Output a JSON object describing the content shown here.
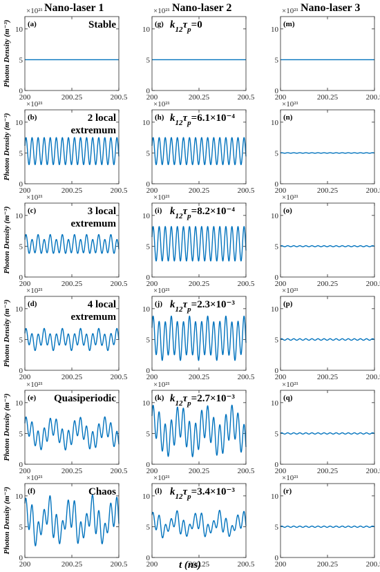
{
  "figure": {
    "column_titles": [
      "Nano-laser 1",
      "Nano-laser 2",
      "Nano-laser 3"
    ],
    "ylabel": "Photon Density (m⁻³)",
    "xlabel": "t (ns)",
    "y_exponent": "×10²¹"
  },
  "chart_data": [
    {
      "id": "a",
      "type": "line",
      "panel_label": "(a)",
      "annotation": [
        "Stable"
      ],
      "xlim": [
        200,
        200.5
      ],
      "ylim": [
        0,
        12
      ],
      "xticks": [
        200,
        200.25,
        200.5
      ],
      "xtick_labels": [
        "200",
        "200.25",
        "200.5"
      ],
      "yticks": [
        0,
        5,
        10
      ],
      "exponent": "×10²¹",
      "series": [
        {
          "mean": 5,
          "amplitude": 0,
          "cycles": 0
        }
      ]
    },
    {
      "id": "g",
      "type": "line",
      "panel_label": "(g)",
      "annotation": [
        "k12τp=0"
      ],
      "xlim": [
        200,
        200.5
      ],
      "ylim": [
        0,
        12
      ],
      "xticks": [
        200,
        200.25,
        200.5
      ],
      "xtick_labels": [
        "200",
        "200.25",
        "200.5"
      ],
      "yticks": [
        0,
        5,
        10
      ],
      "exponent": "×10²¹",
      "series": [
        {
          "mean": 5,
          "amplitude": 0,
          "cycles": 0
        }
      ]
    },
    {
      "id": "m",
      "type": "line",
      "panel_label": "(m)",
      "annotation": [],
      "xlim": [
        200,
        200.5
      ],
      "ylim": [
        0,
        12
      ],
      "xticks": [
        200,
        200.25,
        200.5
      ],
      "xtick_labels": [
        "200",
        "200.25",
        "200.5"
      ],
      "yticks": [
        0,
        5,
        10
      ],
      "exponent": "×10²¹",
      "series": [
        {
          "mean": 5,
          "amplitude": 0,
          "cycles": 0
        }
      ]
    },
    {
      "id": "b",
      "type": "line",
      "panel_label": "(b)",
      "annotation": [
        "2 local",
        "extremum"
      ],
      "xlim": [
        200,
        200.5
      ],
      "ylim": [
        0,
        12
      ],
      "xticks": [
        200,
        200.25,
        200.5
      ],
      "xtick_labels": [
        "200",
        "200.25",
        "200.5"
      ],
      "yticks": [
        0,
        5,
        10
      ],
      "exponent": "×10²¹",
      "series": [
        {
          "mean": 5.3,
          "amplitude": 2.2,
          "cycles": 15.5
        }
      ]
    },
    {
      "id": "h",
      "type": "line",
      "panel_label": "(h)",
      "annotation": [
        "k12τp=6.1×10⁻⁴"
      ],
      "xlim": [
        200,
        200.5
      ],
      "ylim": [
        0,
        12
      ],
      "xticks": [
        200,
        200.25,
        200.5
      ],
      "xtick_labels": [
        "200",
        "200.25",
        "200.5"
      ],
      "yticks": [
        0,
        5,
        10
      ],
      "exponent": "×10²¹",
      "series": [
        {
          "mean": 5.3,
          "amplitude": 2.2,
          "cycles": 15.5
        }
      ]
    },
    {
      "id": "n",
      "type": "line",
      "panel_label": "(n)",
      "annotation": [],
      "xlim": [
        200,
        200.5
      ],
      "ylim": [
        0,
        12
      ],
      "xticks": [
        200,
        200.25,
        200.5
      ],
      "xtick_labels": [
        "200",
        "200.25",
        "200.5"
      ],
      "yticks": [
        0,
        5,
        10
      ],
      "exponent": "×10²¹",
      "series": [
        {
          "mean": 5,
          "amplitude": 0.04,
          "cycles": 15.5
        }
      ]
    },
    {
      "id": "c",
      "type": "line",
      "panel_label": "(c)",
      "annotation": [
        "3 local",
        "extremum"
      ],
      "xlim": [
        200,
        200.5
      ],
      "ylim": [
        0,
        12
      ],
      "xticks": [
        200,
        200.25,
        200.5
      ],
      "xtick_labels": [
        "200",
        "200.25",
        "200.5"
      ],
      "yticks": [
        0,
        5,
        10
      ],
      "exponent": "×10²¹",
      "series": [
        {
          "mean": 5.2,
          "amplitude": 1.3,
          "cycles": 15.5,
          "second_amplitude": 0.4,
          "second_cycles": 7.75
        }
      ]
    },
    {
      "id": "i",
      "type": "line",
      "panel_label": "(i)",
      "annotation": [
        "k12τp=8.2×10⁻⁴"
      ],
      "xlim": [
        200,
        200.5
      ],
      "ylim": [
        0,
        12
      ],
      "xticks": [
        200,
        200.25,
        200.5
      ],
      "xtick_labels": [
        "200",
        "200.25",
        "200.5"
      ],
      "yticks": [
        0,
        5,
        10
      ],
      "exponent": "×10²¹",
      "series": [
        {
          "mean": 5.4,
          "amplitude": 2.8,
          "cycles": 15.5
        }
      ]
    },
    {
      "id": "o",
      "type": "line",
      "panel_label": "(o)",
      "annotation": [],
      "xlim": [
        200,
        200.5
      ],
      "ylim": [
        0,
        12
      ],
      "xticks": [
        200,
        200.25,
        200.5
      ],
      "xtick_labels": [
        "200",
        "200.25",
        "200.5"
      ],
      "yticks": [
        0,
        5,
        10
      ],
      "exponent": "×10²¹",
      "series": [
        {
          "mean": 5,
          "amplitude": 0.08,
          "cycles": 15.5
        }
      ]
    },
    {
      "id": "d",
      "type": "line",
      "panel_label": "(d)",
      "annotation": [
        "4 local",
        "extremum"
      ],
      "xlim": [
        200,
        200.5
      ],
      "ylim": [
        0,
        12
      ],
      "xticks": [
        200,
        200.25,
        200.5
      ],
      "xtick_labels": [
        "200",
        "200.25",
        "200.5"
      ],
      "yticks": [
        0,
        5,
        10
      ],
      "exponent": "×10²¹",
      "series": [
        {
          "mean": 5.0,
          "amplitude": 1.2,
          "cycles": 15.5,
          "second_amplitude": 0.6,
          "second_cycles": 5.2
        }
      ]
    },
    {
      "id": "j",
      "type": "line",
      "panel_label": "(j)",
      "annotation": [
        "k12τp=2.3×10⁻³"
      ],
      "xlim": [
        200,
        200.5
      ],
      "ylim": [
        0,
        12
      ],
      "xticks": [
        200,
        200.25,
        200.5
      ],
      "xtick_labels": [
        "200",
        "200.25",
        "200.5"
      ],
      "yticks": [
        0,
        5,
        10
      ],
      "exponent": "×10²¹",
      "series": [
        {
          "mean": 5.2,
          "amplitude": 3.0,
          "cycles": 15.5,
          "second_amplitude": 0.6,
          "second_cycles": 5.2
        }
      ]
    },
    {
      "id": "p",
      "type": "line",
      "panel_label": "(p)",
      "annotation": [],
      "xlim": [
        200,
        200.5
      ],
      "ylim": [
        0,
        12
      ],
      "xticks": [
        200,
        200.25,
        200.5
      ],
      "xtick_labels": [
        "200",
        "200.25",
        "200.5"
      ],
      "yticks": [
        0,
        5,
        10
      ],
      "exponent": "×10²¹",
      "series": [
        {
          "mean": 5,
          "amplitude": 0.12,
          "cycles": 15.5
        }
      ]
    },
    {
      "id": "e",
      "type": "line",
      "panel_label": "(e)",
      "annotation": [
        "Quasiperiodic"
      ],
      "xlim": [
        200,
        200.5
      ],
      "ylim": [
        0,
        12
      ],
      "xticks": [
        200,
        200.25,
        200.5
      ],
      "xtick_labels": [
        "200",
        "200.25",
        "200.5"
      ],
      "yticks": [
        0,
        5,
        10
      ],
      "exponent": "×10²¹",
      "series": [
        {
          "mean": 5.0,
          "amplitude": 1.5,
          "cycles": 15.5,
          "second_amplitude": 1.2,
          "second_cycles": 3.6
        }
      ]
    },
    {
      "id": "k",
      "type": "line",
      "panel_label": "(k)",
      "annotation": [
        "k12τp=2.7×10⁻³"
      ],
      "xlim": [
        200,
        200.5
      ],
      "ylim": [
        0,
        12
      ],
      "xticks": [
        200,
        200.25,
        200.5
      ],
      "xtick_labels": [
        "200",
        "200.25",
        "200.5"
      ],
      "yticks": [
        0,
        5,
        10
      ],
      "exponent": "×10²¹",
      "series": [
        {
          "mean": 5.4,
          "amplitude": 2.6,
          "cycles": 15.5,
          "second_amplitude": 1.6,
          "second_cycles": 3.6
        }
      ]
    },
    {
      "id": "q",
      "type": "line",
      "panel_label": "(q)",
      "annotation": [],
      "xlim": [
        200,
        200.5
      ],
      "ylim": [
        0,
        12
      ],
      "xticks": [
        200,
        200.25,
        200.5
      ],
      "xtick_labels": [
        "200",
        "200.25",
        "200.5"
      ],
      "yticks": [
        0,
        5,
        10
      ],
      "exponent": "×10²¹",
      "series": [
        {
          "mean": 5,
          "amplitude": 0.1,
          "cycles": 15.5
        }
      ]
    },
    {
      "id": "f",
      "type": "line",
      "panel_label": "(f)",
      "annotation": [
        "Chaos"
      ],
      "xlim": [
        200,
        200.5
      ],
      "ylim": [
        0,
        12
      ],
      "xticks": [
        200,
        200.25,
        200.5
      ],
      "xtick_labels": [
        "200",
        "200.25",
        "200.5"
      ],
      "yticks": [
        0,
        5,
        10
      ],
      "exponent": "×10²¹",
      "series": [
        {
          "mean": 5.8,
          "amplitude": 2.0,
          "cycles": 15.5,
          "second_amplitude": 1.8,
          "second_cycles": 4.3,
          "third_amplitude": 0.8,
          "third_cycles": 11.1
        }
      ]
    },
    {
      "id": "l",
      "type": "line",
      "panel_label": "(l)",
      "annotation": [
        "k12τp=3.4×10⁻³"
      ],
      "xlim": [
        200,
        200.5
      ],
      "ylim": [
        0,
        12
      ],
      "xticks": [
        200,
        200.25,
        200.5
      ],
      "xtick_labels": [
        "200",
        "200.25",
        "200.5"
      ],
      "yticks": [
        0,
        5,
        10
      ],
      "exponent": "×10²¹",
      "series": [
        {
          "mean": 5.3,
          "amplitude": 1.1,
          "cycles": 15.5,
          "second_amplitude": 0.9,
          "second_cycles": 4.3,
          "third_amplitude": 0.5,
          "third_cycles": 11.1
        }
      ]
    },
    {
      "id": "r",
      "type": "line",
      "panel_label": "(r)",
      "annotation": [],
      "xlim": [
        200,
        200.5
      ],
      "ylim": [
        0,
        12
      ],
      "xticks": [
        200,
        200.25,
        200.5
      ],
      "xtick_labels": [
        "200",
        "200.25",
        "200.5"
      ],
      "yticks": [
        0,
        5,
        10
      ],
      "exponent": "×10²¹",
      "series": [
        {
          "mean": 5,
          "amplitude": 0.1,
          "cycles": 15.5
        }
      ]
    }
  ]
}
